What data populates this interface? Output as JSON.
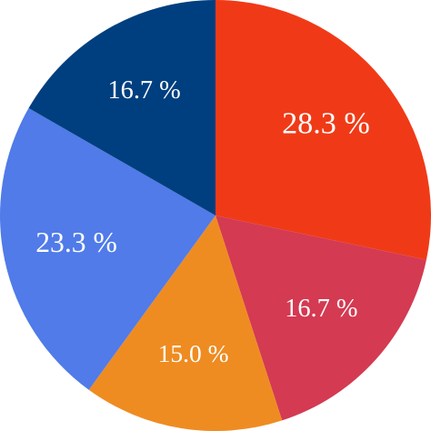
{
  "chart_data": {
    "type": "pie",
    "categories": [
      null,
      null,
      null,
      null,
      null
    ],
    "values": [
      28.3,
      16.7,
      15.0,
      23.3,
      16.7
    ],
    "value_labels": [
      "28.3 %",
      "16.7 %",
      "15.0 %",
      "23.3 %",
      "16.7 %"
    ],
    "colors": [
      "#f03a17",
      "#d43a52",
      "#ee8c22",
      "#507be8",
      "#003f7f"
    ]
  }
}
